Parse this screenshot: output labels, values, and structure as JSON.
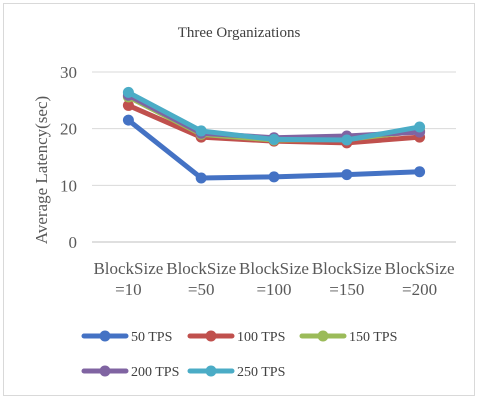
{
  "chart_data": {
    "type": "line",
    "title": "Three Organizations",
    "xlabel": "",
    "ylabel": "Average Latency(sec)",
    "ylim": [
      0,
      30
    ],
    "yticks": [
      0,
      10,
      20,
      30
    ],
    "grid": true,
    "legend_position": "bottom",
    "categories": [
      [
        "BlockSize",
        "=10"
      ],
      [
        "BlockSize",
        "=50"
      ],
      [
        "BlockSize",
        "=100"
      ],
      [
        "BlockSize",
        "=150"
      ],
      [
        "BlockSize",
        "=200"
      ]
    ],
    "series": [
      {
        "name": "50 TPS",
        "color": "#4472c4",
        "values": [
          21.5,
          11.3,
          11.5,
          11.9,
          12.4
        ]
      },
      {
        "name": "100 TPS",
        "color": "#c0504d",
        "values": [
          24.1,
          18.5,
          17.8,
          17.5,
          18.5
        ]
      },
      {
        "name": "150 TPS",
        "color": "#9bbb59",
        "values": [
          25.6,
          19.0,
          18.0,
          18.1,
          19.6
        ]
      },
      {
        "name": "200 TPS",
        "color": "#8064a2",
        "values": [
          25.9,
          19.2,
          18.4,
          18.7,
          19.4
        ]
      },
      {
        "name": "250 TPS",
        "color": "#4bacc6",
        "values": [
          26.4,
          19.6,
          18.1,
          18.0,
          20.3
        ]
      }
    ]
  }
}
